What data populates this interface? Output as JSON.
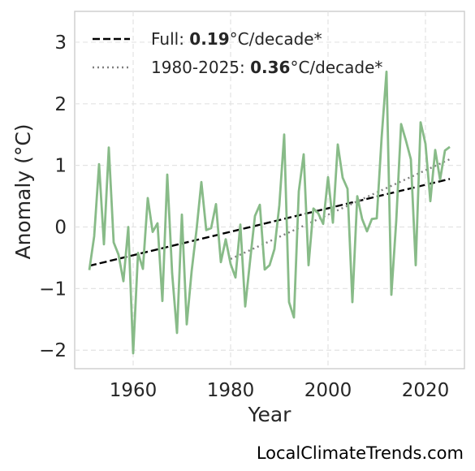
{
  "chart_data": {
    "type": "line",
    "xlabel": "Year",
    "ylabel": "Anomaly (°C)",
    "xlim": [
      1948,
      2028
    ],
    "ylim": [
      -2.3,
      3.5
    ],
    "xticks": [
      1960,
      1980,
      2000,
      2020
    ],
    "yticks": [
      -2,
      -1,
      0,
      1,
      2,
      3
    ],
    "ytick_labels": [
      "−2",
      "−1",
      "0",
      "1",
      "2",
      "3"
    ],
    "grid": true,
    "legend_position": "top-left",
    "series": [
      {
        "color": "#88bb88",
        "x": [
          1951,
          1952,
          1953,
          1954,
          1955,
          1956,
          1957,
          1958,
          1959,
          1960,
          1961,
          1962,
          1963,
          1964,
          1965,
          1966,
          1967,
          1968,
          1969,
          1970,
          1971,
          1972,
          1973,
          1974,
          1975,
          1976,
          1977,
          1978,
          1979,
          1980,
          1981,
          1982,
          1983,
          1984,
          1985,
          1986,
          1987,
          1988,
          1989,
          1990,
          1991,
          1992,
          1993,
          1994,
          1995,
          1996,
          1997,
          1998,
          1999,
          2000,
          2001,
          2002,
          2003,
          2004,
          2005,
          2006,
          2007,
          2008,
          2009,
          2010,
          2011,
          2012,
          2013,
          2014,
          2015,
          2016,
          2017,
          2018,
          2019,
          2020,
          2021,
          2022,
          2023,
          2024,
          2025
        ],
        "y": [
          -0.7,
          -0.15,
          1.02,
          -0.28,
          1.29,
          -0.25,
          -0.45,
          -0.88,
          0.0,
          -2.05,
          -0.42,
          -0.68,
          0.47,
          -0.08,
          0.06,
          -1.2,
          0.85,
          -0.75,
          -1.72,
          0.2,
          -1.58,
          -0.72,
          -0.05,
          0.73,
          -0.05,
          -0.02,
          0.37,
          -0.57,
          -0.2,
          -0.6,
          -0.82,
          0.04,
          -1.29,
          -0.55,
          0.18,
          0.36,
          -0.69,
          -0.62,
          -0.36,
          0.35,
          1.5,
          -1.22,
          -1.47,
          0.58,
          1.18,
          -0.62,
          0.3,
          0.22,
          0.05,
          0.81,
          0.07,
          1.34,
          0.8,
          0.62,
          -1.22,
          0.5,
          0.13,
          -0.07,
          0.13,
          0.14,
          1.45,
          2.52,
          -1.1,
          0.1,
          1.67,
          1.4,
          1.1,
          -0.62,
          1.7,
          1.35,
          0.42,
          1.25,
          0.77,
          1.24,
          1.3
        ]
      }
    ],
    "trends": [
      {
        "label_prefix": "Full: ",
        "rate": "0.19",
        "label_suffix": "°C/decade*",
        "style": "dashed",
        "color": "#000000",
        "x": [
          1951,
          2025
        ],
        "y": [
          -0.63,
          0.78
        ]
      },
      {
        "label_prefix": "1980-2025: ",
        "rate": "0.36",
        "label_suffix": "°C/decade*",
        "style": "dotted",
        "color": "#7f7f7f",
        "x": [
          1980,
          2025
        ],
        "y": [
          -0.52,
          1.1
        ]
      }
    ]
  },
  "credit": "LocalClimateTrends.com"
}
